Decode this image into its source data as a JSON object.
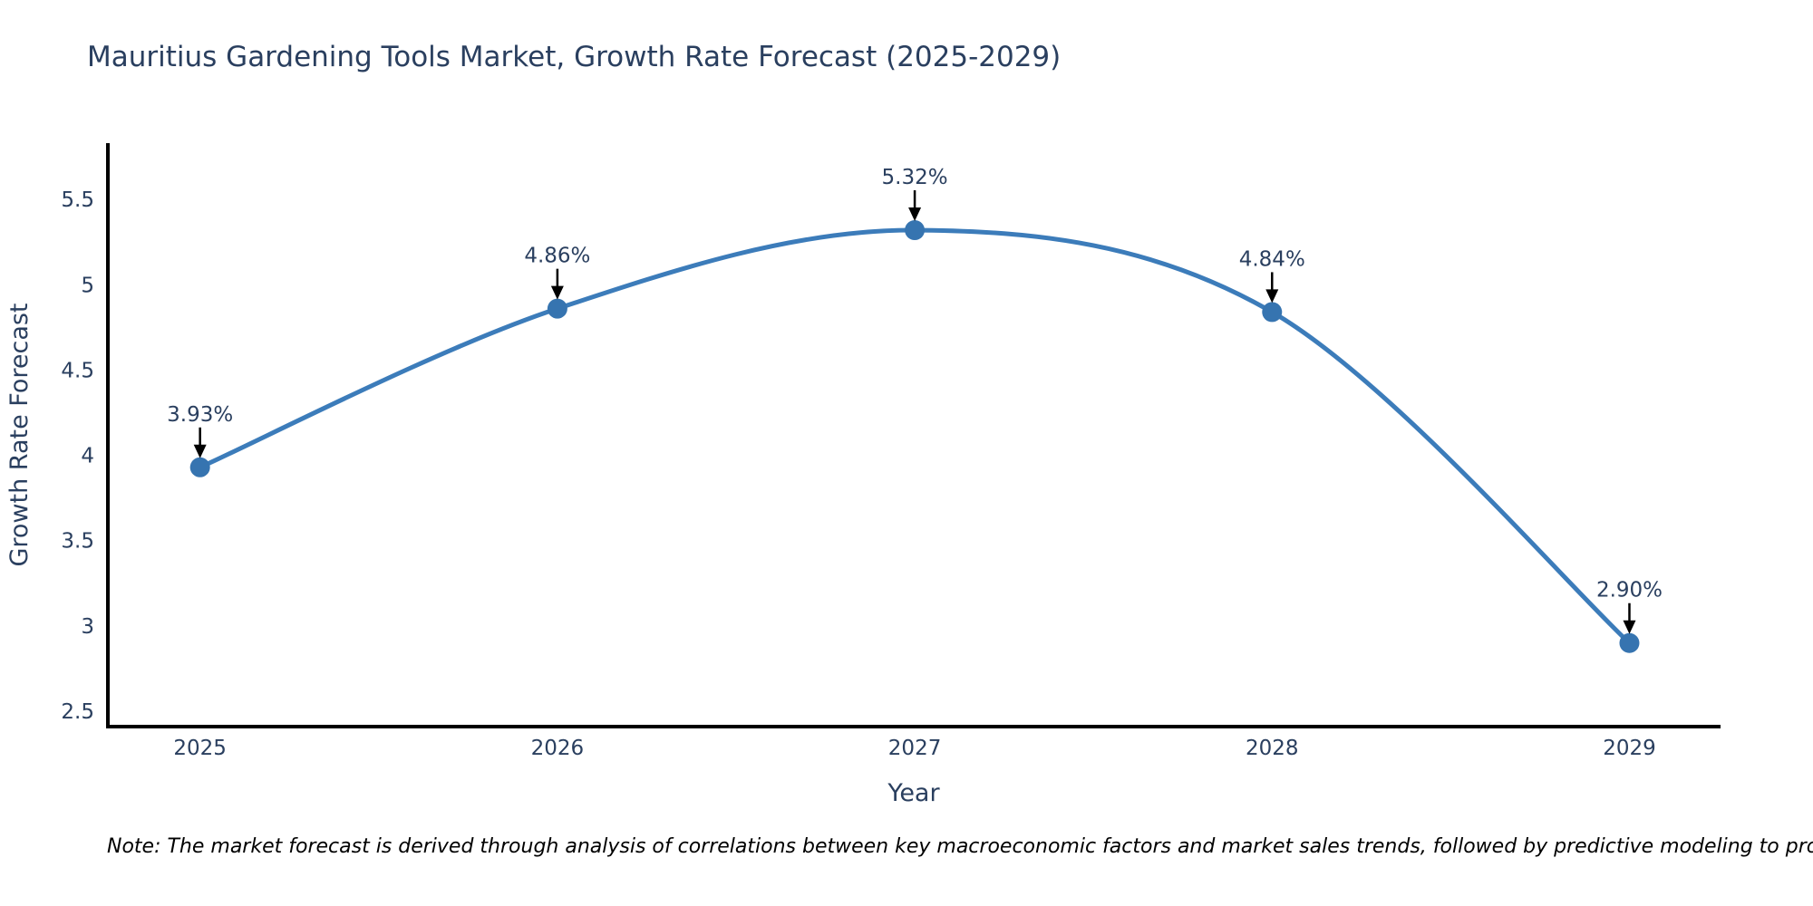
{
  "chart_data": {
    "type": "line",
    "title": "Mauritius Gardening Tools Market, Growth Rate Forecast (2025-2029)",
    "xlabel": "Year",
    "ylabel": "Growth Rate Forecast",
    "x": [
      2025,
      2026,
      2027,
      2028,
      2029
    ],
    "x_tick_labels": [
      "2025",
      "2026",
      "2027",
      "2028",
      "2029"
    ],
    "values": [
      3.93,
      4.86,
      5.32,
      4.84,
      2.9
    ],
    "point_labels": [
      "3.93%",
      "4.86%",
      "5.32%",
      "4.84%",
      "2.90%"
    ],
    "yticks": [
      2.5,
      3,
      3.5,
      4,
      4.5,
      5,
      5.5
    ],
    "ytick_labels": [
      "2.5",
      "3",
      "3.5",
      "4",
      "4.5",
      "5",
      "5.5"
    ],
    "xlim": [
      2024.737,
      2029.255
    ],
    "ylim": [
      2.41,
      5.83
    ],
    "grid": false,
    "legend": "none",
    "line_shape": "spline",
    "colors": {
      "line": "#3c7cba",
      "marker": "#3674b0",
      "axis": "#000000",
      "text": "#2a3f5f",
      "annotation_arrow": "#000000",
      "note": "#000000",
      "background": "#ffffff"
    },
    "note": "Note: The market forecast is derived through analysis of correlations between key macroeconomic factors and market sales trends, followed by predictive modeling to project future sales"
  }
}
